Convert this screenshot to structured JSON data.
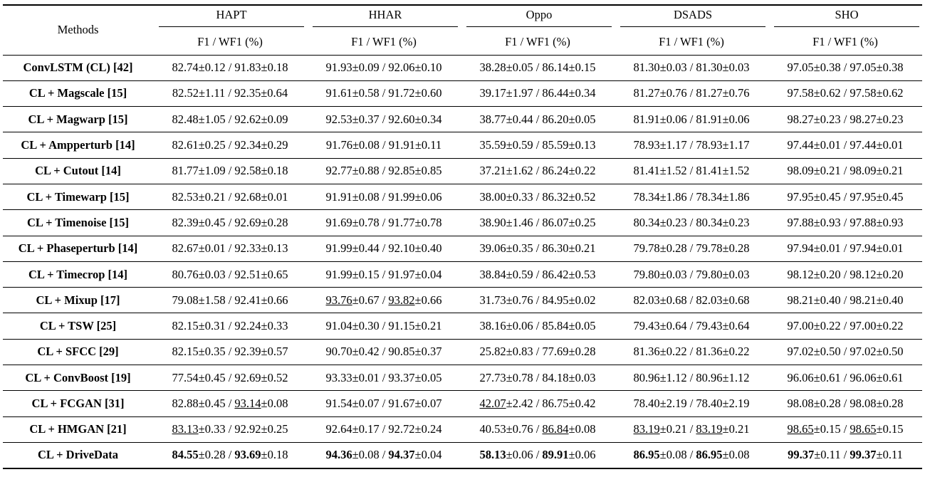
{
  "methods_header": "Methods",
  "datasets": [
    "HAPT",
    "HHAR",
    "Oppo",
    "DSADS",
    "SHO"
  ],
  "metric_label": "F1 / WF1 (%)",
  "rows": [
    {
      "method": "ConvLSTM (CL) [42]",
      "cells": [
        {
          "f1": "82.74",
          "f1_pm": "±0.12",
          "wf1": "91.83",
          "wf1_pm": "±0.18"
        },
        {
          "f1": "91.93",
          "f1_pm": "±0.09",
          "wf1": "92.06",
          "wf1_pm": "±0.10"
        },
        {
          "f1": "38.28",
          "f1_pm": "±0.05",
          "wf1": "86.14",
          "wf1_pm": "±0.15"
        },
        {
          "f1": "81.30",
          "f1_pm": "±0.03",
          "wf1": "81.30",
          "wf1_pm": "±0.03"
        },
        {
          "f1": "97.05",
          "f1_pm": "±0.38",
          "wf1": "97.05",
          "wf1_pm": "±0.38"
        }
      ]
    },
    {
      "method": "CL + Magscale [15]",
      "cells": [
        {
          "f1": "82.52",
          "f1_pm": "±1.11",
          "wf1": "92.35",
          "wf1_pm": "±0.64"
        },
        {
          "f1": "91.61",
          "f1_pm": "±0.58",
          "wf1": "91.72",
          "wf1_pm": "±0.60"
        },
        {
          "f1": "39.17",
          "f1_pm": "±1.97",
          "wf1": "86.44",
          "wf1_pm": "±0.34"
        },
        {
          "f1": "81.27",
          "f1_pm": "±0.76",
          "wf1": "81.27",
          "wf1_pm": "±0.76"
        },
        {
          "f1": "97.58",
          "f1_pm": "±0.62",
          "wf1": "97.58",
          "wf1_pm": "±0.62"
        }
      ]
    },
    {
      "method": "CL + Magwarp [15]",
      "cells": [
        {
          "f1": "82.48",
          "f1_pm": "±1.05",
          "wf1": "92.62",
          "wf1_pm": "±0.09"
        },
        {
          "f1": "92.53",
          "f1_pm": "±0.37",
          "wf1": "92.60",
          "wf1_pm": "±0.34"
        },
        {
          "f1": "38.77",
          "f1_pm": "±0.44",
          "wf1": "86.20",
          "wf1_pm": "±0.05"
        },
        {
          "f1": "81.91",
          "f1_pm": "±0.06",
          "wf1": "81.91",
          "wf1_pm": "±0.06"
        },
        {
          "f1": "98.27",
          "f1_pm": "±0.23",
          "wf1": "98.27",
          "wf1_pm": "±0.23"
        }
      ]
    },
    {
      "method": "CL + Ampperturb [14]",
      "cells": [
        {
          "f1": "82.61",
          "f1_pm": "±0.25",
          "wf1": "92.34",
          "wf1_pm": "±0.29"
        },
        {
          "f1": "91.76",
          "f1_pm": "±0.08",
          "wf1": "91.91",
          "wf1_pm": "±0.11"
        },
        {
          "f1": "35.59",
          "f1_pm": "±0.59",
          "wf1": "85.59",
          "wf1_pm": "±0.13"
        },
        {
          "f1": "78.93",
          "f1_pm": "±1.17",
          "wf1": "78.93",
          "wf1_pm": "±1.17"
        },
        {
          "f1": "97.44",
          "f1_pm": "±0.01",
          "wf1": "97.44",
          "wf1_pm": "±0.01"
        }
      ]
    },
    {
      "method": "CL + Cutout [14]",
      "cells": [
        {
          "f1": "81.77",
          "f1_pm": "±1.09",
          "wf1": "92.58",
          "wf1_pm": "±0.18"
        },
        {
          "f1": "92.77",
          "f1_pm": "±0.88",
          "wf1": "92.85",
          "wf1_pm": "±0.85"
        },
        {
          "f1": "37.21",
          "f1_pm": "±1.62",
          "wf1": "86.24",
          "wf1_pm": "±0.22"
        },
        {
          "f1": "81.41",
          "f1_pm": "±1.52",
          "wf1": "81.41",
          "wf1_pm": "±1.52"
        },
        {
          "f1": "98.09",
          "f1_pm": "±0.21",
          "wf1": "98.09",
          "wf1_pm": "±0.21"
        }
      ]
    },
    {
      "method": "CL + Timewarp [15]",
      "cells": [
        {
          "f1": "82.53",
          "f1_pm": "±0.21",
          "wf1": "92.68",
          "wf1_pm": "±0.01"
        },
        {
          "f1": "91.91",
          "f1_pm": "±0.08",
          "wf1": "91.99",
          "wf1_pm": "±0.06"
        },
        {
          "f1": "38.00",
          "f1_pm": "±0.33",
          "wf1": "86.32",
          "wf1_pm": "±0.52"
        },
        {
          "f1": "78.34",
          "f1_pm": "±1.86",
          "wf1": "78.34",
          "wf1_pm": "±1.86"
        },
        {
          "f1": "97.95",
          "f1_pm": "±0.45",
          "wf1": "97.95",
          "wf1_pm": "±0.45"
        }
      ]
    },
    {
      "method": "CL + Timenoise [15]",
      "cells": [
        {
          "f1": "82.39",
          "f1_pm": "±0.45",
          "wf1": "92.69",
          "wf1_pm": "±0.28"
        },
        {
          "f1": "91.69",
          "f1_pm": "±0.78",
          "wf1": "91.77",
          "wf1_pm": "±0.78"
        },
        {
          "f1": "38.90",
          "f1_pm": "±1.46",
          "wf1": "86.07",
          "wf1_pm": "±0.25"
        },
        {
          "f1": "80.34",
          "f1_pm": "±0.23",
          "wf1": "80.34",
          "wf1_pm": "±0.23"
        },
        {
          "f1": "97.88",
          "f1_pm": "±0.93",
          "wf1": "97.88",
          "wf1_pm": "±0.93"
        }
      ]
    },
    {
      "method": "CL + Phaseperturb [14]",
      "cells": [
        {
          "f1": "82.67",
          "f1_pm": "±0.01",
          "wf1": "92.33",
          "wf1_pm": "±0.13"
        },
        {
          "f1": "91.99",
          "f1_pm": "±0.44",
          "wf1": "92.10",
          "wf1_pm": "±0.40"
        },
        {
          "f1": "39.06",
          "f1_pm": "±0.35",
          "wf1": "86.30",
          "wf1_pm": "±0.21"
        },
        {
          "f1": "79.78",
          "f1_pm": "±0.28",
          "wf1": "79.78",
          "wf1_pm": "±0.28"
        },
        {
          "f1": "97.94",
          "f1_pm": "±0.01",
          "wf1": "97.94",
          "wf1_pm": "±0.01"
        }
      ]
    },
    {
      "method": "CL + Timecrop [14]",
      "cells": [
        {
          "f1": "80.76",
          "f1_pm": "±0.03",
          "wf1": "92.51",
          "wf1_pm": "±0.65"
        },
        {
          "f1": "91.99",
          "f1_pm": "±0.15",
          "wf1": "91.97",
          "wf1_pm": "±0.04"
        },
        {
          "f1": "38.84",
          "f1_pm": "±0.59",
          "wf1": "86.42",
          "wf1_pm": "±0.53"
        },
        {
          "f1": "79.80",
          "f1_pm": "±0.03",
          "wf1": "79.80",
          "wf1_pm": "±0.03"
        },
        {
          "f1": "98.12",
          "f1_pm": "±0.20",
          "wf1": "98.12",
          "wf1_pm": "±0.20"
        }
      ]
    },
    {
      "method": "CL + Mixup [17]",
      "cells": [
        {
          "f1": "79.08",
          "f1_pm": "±1.58",
          "wf1": "92.41",
          "wf1_pm": "±0.66"
        },
        {
          "f1": "93.76",
          "f1_pm": "±0.67",
          "wf1": "93.82",
          "wf1_pm": "±0.66",
          "f1_style": "ul",
          "wf1_style": "ul"
        },
        {
          "f1": "31.73",
          "f1_pm": "±0.76",
          "wf1": "84.95",
          "wf1_pm": "±0.02"
        },
        {
          "f1": "82.03",
          "f1_pm": "±0.68",
          "wf1": "82.03",
          "wf1_pm": "±0.68"
        },
        {
          "f1": "98.21",
          "f1_pm": "±0.40",
          "wf1": "98.21",
          "wf1_pm": "±0.40"
        }
      ]
    },
    {
      "method": "CL + TSW [25]",
      "cells": [
        {
          "f1": "82.15",
          "f1_pm": "±0.31",
          "wf1": "92.24",
          "wf1_pm": "±0.33"
        },
        {
          "f1": "91.04",
          "f1_pm": "±0.30",
          "wf1": "91.15",
          "wf1_pm": "±0.21"
        },
        {
          "f1": "38.16",
          "f1_pm": "±0.06",
          "wf1": "85.84",
          "wf1_pm": "±0.05"
        },
        {
          "f1": "79.43",
          "f1_pm": "±0.64",
          "wf1": "79.43",
          "wf1_pm": "±0.64"
        },
        {
          "f1": "97.00",
          "f1_pm": "±0.22",
          "wf1": "97.00",
          "wf1_pm": "±0.22"
        }
      ]
    },
    {
      "method": "CL + SFCC [29]",
      "cells": [
        {
          "f1": "82.15",
          "f1_pm": "±0.35",
          "wf1": "92.39",
          "wf1_pm": "±0.57"
        },
        {
          "f1": "90.70",
          "f1_pm": "±0.42",
          "wf1": "90.85",
          "wf1_pm": "±0.37"
        },
        {
          "f1": "25.82",
          "f1_pm": "±0.83",
          "wf1": "77.69",
          "wf1_pm": "±0.28"
        },
        {
          "f1": "81.36",
          "f1_pm": "±0.22",
          "wf1": "81.36",
          "wf1_pm": "±0.22"
        },
        {
          "f1": "97.02",
          "f1_pm": "±0.50",
          "wf1": "97.02",
          "wf1_pm": "±0.50"
        }
      ]
    },
    {
      "method": "CL + ConvBoost [19]",
      "cells": [
        {
          "f1": "77.54",
          "f1_pm": "±0.45",
          "wf1": "92.69",
          "wf1_pm": "±0.52"
        },
        {
          "f1": "93.33",
          "f1_pm": "±0.01",
          "wf1": "93.37",
          "wf1_pm": "±0.05"
        },
        {
          "f1": "27.73",
          "f1_pm": "±0.78",
          "wf1": "84.18",
          "wf1_pm": "±0.03"
        },
        {
          "f1": "80.96",
          "f1_pm": "±1.12",
          "wf1": "80.96",
          "wf1_pm": "±1.12"
        },
        {
          "f1": "96.06",
          "f1_pm": "±0.61",
          "wf1": "96.06",
          "wf1_pm": "±0.61"
        }
      ]
    },
    {
      "method": "CL + FCGAN [31]",
      "cells": [
        {
          "f1": "82.88",
          "f1_pm": "±0.45",
          "wf1": "93.14",
          "wf1_pm": "±0.08",
          "wf1_style": "ul"
        },
        {
          "f1": "91.54",
          "f1_pm": "±0.07",
          "wf1": "91.67",
          "wf1_pm": "±0.07"
        },
        {
          "f1": "42.07",
          "f1_pm": "±2.42",
          "wf1": "86.75",
          "wf1_pm": "±0.42",
          "f1_style": "ul"
        },
        {
          "f1": "78.40",
          "f1_pm": "±2.19",
          "wf1": "78.40",
          "wf1_pm": "±2.19"
        },
        {
          "f1": "98.08",
          "f1_pm": "±0.28",
          "wf1": "98.08",
          "wf1_pm": "±0.28"
        }
      ]
    },
    {
      "method": "CL + HMGAN [21]",
      "cells": [
        {
          "f1": "83.13",
          "f1_pm": "±0.33",
          "wf1": "92.92",
          "wf1_pm": "±0.25",
          "f1_style": "ul"
        },
        {
          "f1": "92.64",
          "f1_pm": "±0.17",
          "wf1": "92.72",
          "wf1_pm": "±0.24"
        },
        {
          "f1": "40.53",
          "f1_pm": "±0.76",
          "wf1": "86.84",
          "wf1_pm": "±0.08",
          "wf1_style": "ul"
        },
        {
          "f1": "83.19",
          "f1_pm": "±0.21",
          "wf1": "83.19",
          "wf1_pm": "±0.21",
          "f1_style": "ul",
          "wf1_style": "ul"
        },
        {
          "f1": "98.65",
          "f1_pm": "±0.15",
          "wf1": "98.65",
          "wf1_pm": "±0.15",
          "f1_style": "ul",
          "wf1_style": "ul"
        }
      ]
    },
    {
      "method": "CL + DriveData",
      "cells": [
        {
          "f1": "84.55",
          "f1_pm": "±0.28",
          "wf1": "93.69",
          "wf1_pm": "±0.18",
          "f1_style": "bd",
          "wf1_style": "bd"
        },
        {
          "f1": "94.36",
          "f1_pm": "±0.08",
          "wf1": "94.37",
          "wf1_pm": "±0.04",
          "f1_style": "bd",
          "wf1_style": "bd"
        },
        {
          "f1": "58.13",
          "f1_pm": "±0.06",
          "wf1": "89.91",
          "wf1_pm": "±0.06",
          "f1_style": "bd",
          "wf1_style": "bd"
        },
        {
          "f1": "86.95",
          "f1_pm": "±0.08",
          "wf1": "86.95",
          "wf1_pm": "±0.08",
          "f1_style": "bd",
          "wf1_style": "bd"
        },
        {
          "f1": "99.37",
          "f1_pm": "±0.11",
          "wf1": "99.37",
          "wf1_pm": "±0.11",
          "f1_style": "bd",
          "wf1_style": "bd"
        }
      ]
    }
  ]
}
